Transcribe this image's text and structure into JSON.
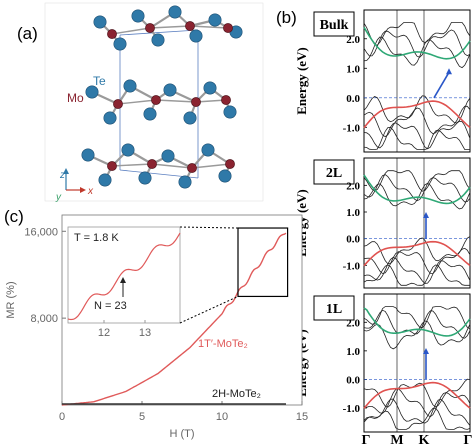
{
  "panel_a": {
    "label": "(a)",
    "atom_labels": {
      "te": "Te",
      "mo": "Mo"
    },
    "axes": {
      "z": "z",
      "y": "y",
      "x": "x"
    },
    "colors": {
      "te": "#2f79a8",
      "mo": "#8a2330",
      "bond": "#9a9a9a",
      "cell": "#5b7fc0"
    }
  },
  "panel_b": {
    "label": "(b)",
    "ylabel": "Energy (eV)",
    "kpath": [
      "Γ",
      "M",
      "K",
      "Γ"
    ],
    "colors": {
      "valence": "#e0524f",
      "conduction": "#2fa876",
      "gap_arrow": "#2a57c8",
      "bands": "#222222"
    },
    "subplots": [
      {
        "title": "Bulk",
        "ticks": [
          "2.0",
          "1.0",
          "0.0",
          "-1.0"
        ]
      },
      {
        "title": "2L",
        "ticks": [
          "2.0",
          "1.0",
          "0.0",
          "-1.0"
        ]
      },
      {
        "title": "1L",
        "ticks": [
          "2.0",
          "1.0",
          "0.0",
          "-1.0"
        ]
      }
    ]
  },
  "panel_c": {
    "label": "(c)",
    "ylabel": "MR (%)",
    "xlabel": "H (T)",
    "yticks": [
      "16,000",
      "8,000"
    ],
    "xticks": [
      "0",
      "5",
      "10",
      "15"
    ],
    "series_labels": {
      "t1": "1T′-MoTe₂",
      "h2": "2H-MoTe₂"
    },
    "inset": {
      "temperature": "T = 1.8 K",
      "n_label": "N = 23",
      "xticks": [
        "12",
        "13"
      ]
    },
    "colors": {
      "t1": "#e05a5a",
      "h2": "#333333"
    }
  },
  "chart_data": {
    "type": "line",
    "title": "",
    "xlabel": "H (T)",
    "ylabel": "MR (%)",
    "xlim": [
      0,
      15
    ],
    "ylim": [
      0,
      17500
    ],
    "series": [
      {
        "name": "1T′-MoTe₂",
        "x": [
          0,
          2,
          4,
          6,
          8,
          10,
          11,
          12,
          13,
          14
        ],
        "y": [
          0,
          300,
          1250,
          2900,
          5300,
          8400,
          10300,
          12300,
          14300,
          16000
        ]
      },
      {
        "name": "2H-MoTe₂",
        "x": [
          0,
          14
        ],
        "y": [
          0,
          0
        ]
      }
    ],
    "annotations": [
      "T = 1.8 K",
      "N = 23"
    ]
  }
}
